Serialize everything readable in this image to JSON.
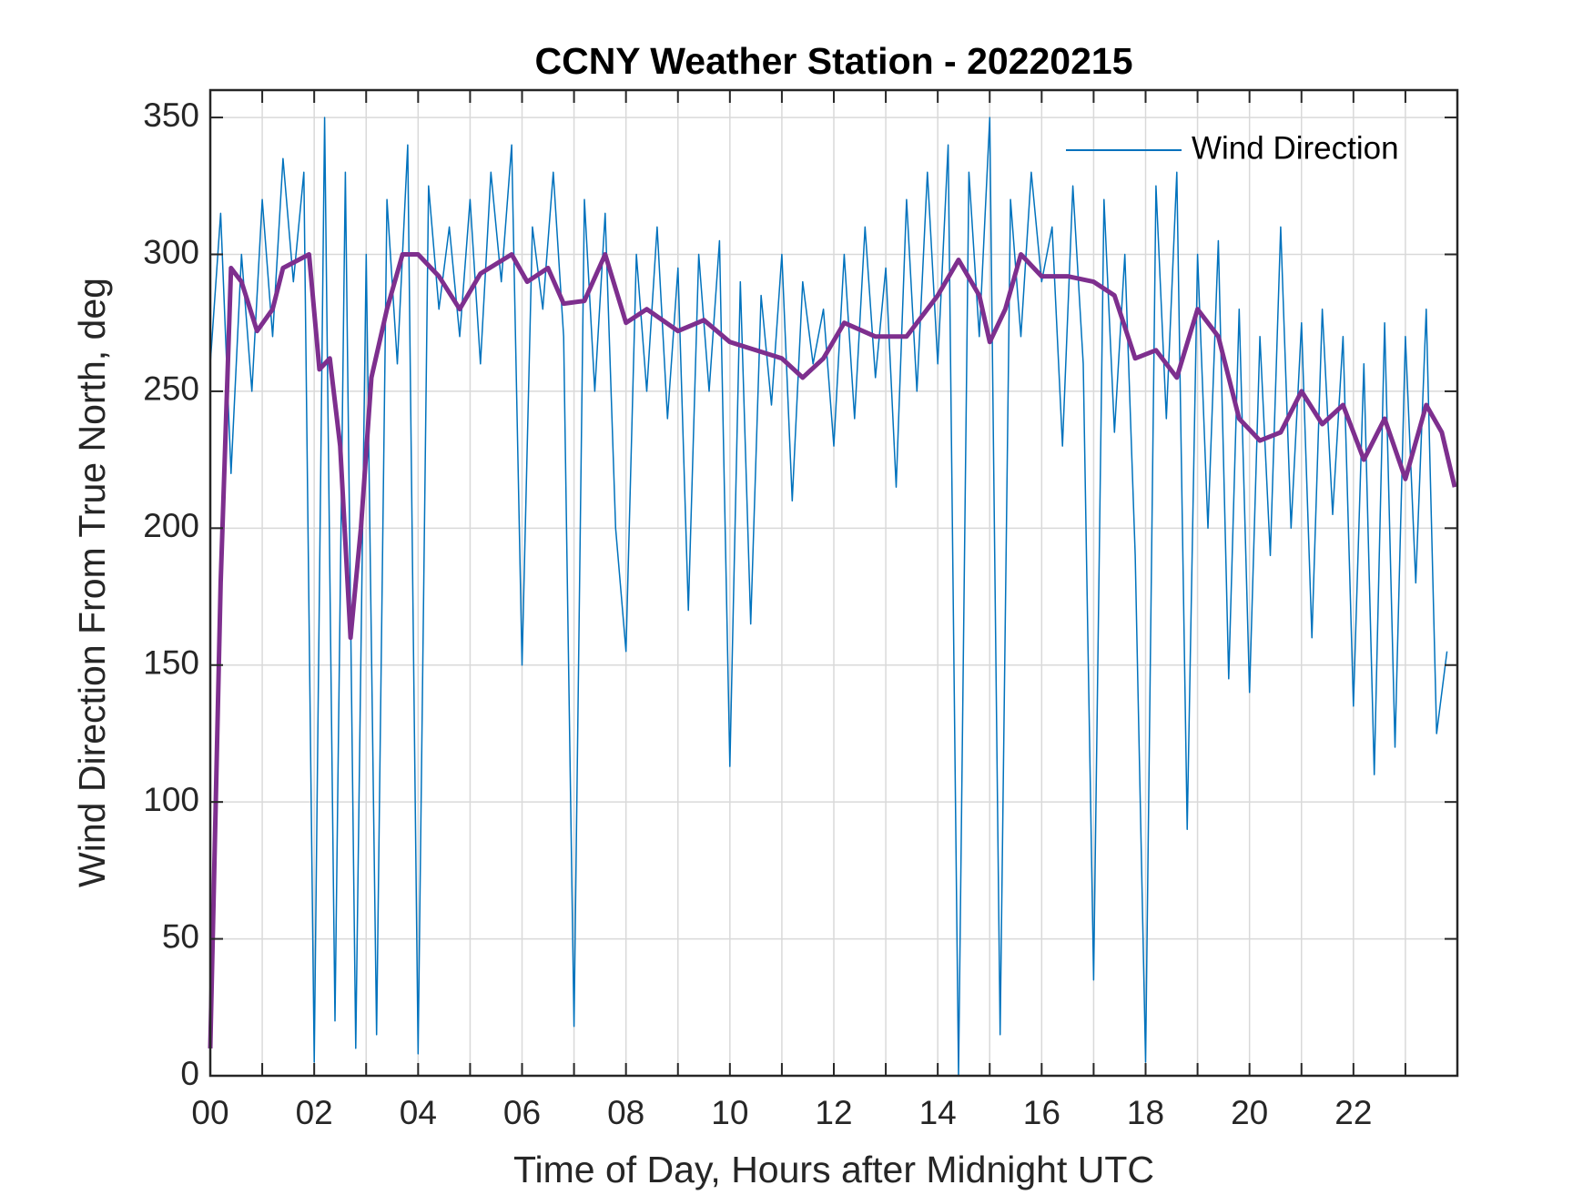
{
  "chart_data": {
    "type": "line",
    "title": "CCNY Weather Station - 20220215",
    "x_label": "Time of Day, Hours after Midnight UTC",
    "y_label": "Wind Direction From True North, deg",
    "xlim": [
      0,
      24
    ],
    "ylim": [
      0,
      360
    ],
    "xticks": [
      {
        "value": 0,
        "label": "00"
      },
      {
        "value": 2,
        "label": "02"
      },
      {
        "value": 4,
        "label": "04"
      },
      {
        "value": 6,
        "label": "06"
      },
      {
        "value": 8,
        "label": "08"
      },
      {
        "value": 10,
        "label": "10"
      },
      {
        "value": 12,
        "label": "12"
      },
      {
        "value": 14,
        "label": "14"
      },
      {
        "value": 16,
        "label": "16"
      },
      {
        "value": 18,
        "label": "18"
      },
      {
        "value": 20,
        "label": "20"
      },
      {
        "value": 22,
        "label": "22"
      }
    ],
    "x_minor_ticks": [
      1,
      3,
      5,
      7,
      9,
      11,
      13,
      15,
      17,
      19,
      21,
      23
    ],
    "yticks": [
      0,
      50,
      100,
      150,
      200,
      250,
      300,
      350
    ],
    "grid": true,
    "legend": "upper right",
    "series": [
      {
        "name": "Wind Direction",
        "color": "#0072bd",
        "width": 1.5,
        "x": [
          0,
          0.2,
          0.4,
          0.6,
          0.8,
          1,
          1.2,
          1.4,
          1.6,
          1.8,
          2,
          2.2,
          2.4,
          2.6,
          2.8,
          3,
          3.2,
          3.4,
          3.6,
          3.8,
          4,
          4.2,
          4.4,
          4.6,
          4.8,
          5,
          5.2,
          5.4,
          5.6,
          5.8,
          6,
          6.2,
          6.4,
          6.6,
          6.8,
          7,
          7.2,
          7.4,
          7.6,
          7.8,
          8,
          8.2,
          8.4,
          8.6,
          8.8,
          9,
          9.2,
          9.4,
          9.6,
          9.8,
          10,
          10.2,
          10.4,
          10.6,
          10.8,
          11,
          11.2,
          11.4,
          11.6,
          11.8,
          12,
          12.2,
          12.4,
          12.6,
          12.8,
          13,
          13.2,
          13.4,
          13.6,
          13.8,
          14,
          14.2,
          14.4,
          14.6,
          14.8,
          15,
          15.2,
          15.4,
          15.6,
          15.8,
          16,
          16.2,
          16.4,
          16.6,
          16.8,
          17,
          17.2,
          17.4,
          17.6,
          17.8,
          18,
          18.2,
          18.4,
          18.6,
          18.8,
          19,
          19.2,
          19.4,
          19.6,
          19.8,
          20,
          20.2,
          20.4,
          20.6,
          20.8,
          21,
          21.2,
          21.4,
          21.6,
          21.8,
          22,
          22.2,
          22.4,
          22.6,
          22.8,
          23,
          23.2,
          23.4,
          23.6,
          23.8
        ],
        "values": [
          260,
          315,
          220,
          300,
          250,
          320,
          270,
          335,
          290,
          330,
          5,
          350,
          20,
          330,
          10,
          300,
          15,
          320,
          260,
          340,
          8,
          325,
          280,
          310,
          270,
          320,
          260,
          330,
          290,
          340,
          150,
          310,
          280,
          330,
          270,
          18,
          320,
          250,
          315,
          200,
          155,
          300,
          250,
          310,
          240,
          295,
          170,
          300,
          250,
          305,
          113,
          290,
          165,
          285,
          245,
          300,
          210,
          290,
          260,
          280,
          230,
          300,
          240,
          310,
          255,
          295,
          215,
          320,
          250,
          330,
          260,
          340,
          0,
          330,
          270,
          350,
          15,
          320,
          270,
          330,
          290,
          310,
          230,
          325,
          260,
          35,
          320,
          235,
          300,
          190,
          5,
          325,
          240,
          330,
          90,
          300,
          200,
          305,
          145,
          280,
          140,
          270,
          190,
          310,
          200,
          275,
          160,
          280,
          205,
          270,
          135,
          260,
          110,
          275,
          120,
          270,
          180,
          280,
          125,
          155
        ]
      },
      {
        "color": "#7e2f8e",
        "width": 5,
        "x": [
          0,
          0.2,
          0.4,
          0.6,
          0.9,
          1.2,
          1.4,
          1.9,
          2.1,
          2.3,
          2.5,
          2.7,
          2.9,
          3.1,
          3.4,
          3.7,
          4.0,
          4.4,
          4.8,
          5.2,
          5.8,
          6.1,
          6.5,
          6.8,
          7.2,
          7.6,
          8.0,
          8.4,
          9.0,
          9.5,
          10.0,
          10.5,
          11.0,
          11.4,
          11.8,
          12.2,
          12.8,
          13.4,
          14.0,
          14.4,
          14.8,
          15.0,
          15.3,
          15.6,
          16.0,
          16.5,
          17.0,
          17.4,
          17.8,
          18.2,
          18.6,
          19.0,
          19.4,
          19.8,
          20.2,
          20.6,
          21.0,
          21.4,
          21.8,
          22.2,
          22.6,
          23.0,
          23.4,
          23.7,
          23.95
        ],
        "values": [
          10,
          180,
          295,
          290,
          272,
          280,
          295,
          300,
          258,
          262,
          230,
          160,
          200,
          255,
          280,
          300,
          300,
          292,
          280,
          293,
          300,
          290,
          295,
          282,
          283,
          300,
          275,
          280,
          272,
          276,
          268,
          265,
          262,
          255,
          262,
          275,
          270,
          270,
          285,
          298,
          285,
          268,
          280,
          300,
          292,
          292,
          290,
          285,
          262,
          265,
          255,
          280,
          270,
          240,
          232,
          235,
          250,
          238,
          245,
          225,
          240,
          218,
          245,
          235,
          215
        ]
      }
    ]
  }
}
